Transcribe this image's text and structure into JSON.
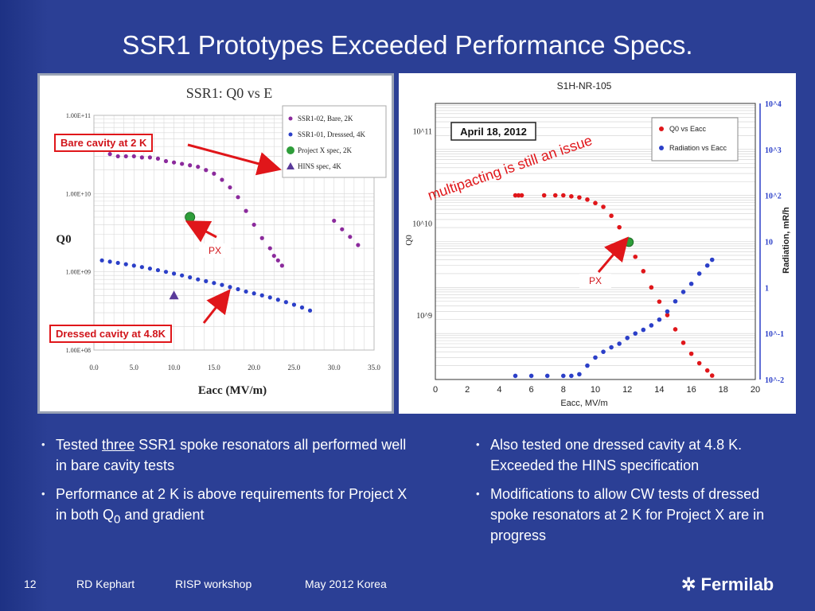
{
  "slide": {
    "title": "SSR1 Prototypes Exceeded Performance Specs.",
    "page_number": "12",
    "author": "RD Kephart",
    "event": "RISP workshop",
    "date_place": "May 2012 Korea",
    "logo_text": "Fermilab"
  },
  "callouts": {
    "bare": "Bare cavity at 2 K",
    "dressed": "Dressed cavity at 4.8K",
    "px_left": "PX",
    "px_right": "PX",
    "multipacting": "multipacting is still an issue"
  },
  "bullets_left": [
    {
      "pre": "Tested ",
      "underline": "three",
      "post": " SSR1 spoke resonators all performed well in bare cavity tests"
    },
    {
      "text": "Performance at 2 K is above requirements for Project X in both Q",
      "sub": "0",
      "post": " and gradient"
    }
  ],
  "bullets_right": [
    "Also tested one dressed cavity at 4.8 K.  Exceeded the HINS specification",
    "Modifications to allow CW tests of dressed spoke resonators at 2 K for Project X are in progress"
  ],
  "colors": {
    "background": "#2b3f95",
    "red": "#e0161a",
    "purple": "#8b2a9c",
    "blue": "#2b3fc8",
    "green": "#2e9d3a"
  },
  "chart_data": [
    {
      "type": "scatter",
      "title": "SSR1: Q0 vs E",
      "xlabel": "Eacc (MV/m)",
      "ylabel": "Q0",
      "xlim": [
        0,
        35
      ],
      "ylim_log": [
        100000000.0,
        100000000000.0
      ],
      "y_scale": "log",
      "xticks": [
        "0.0",
        "5.0",
        "10.0",
        "15.0",
        "20.0",
        "25.0",
        "30.0",
        "35.0"
      ],
      "yticks": [
        "1.00E+08",
        "1.00E+09",
        "1.00E+10",
        "1.00E+11"
      ],
      "legend_position": "top-right",
      "series": [
        {
          "name": "SSR1-02, Bare, 2K",
          "color": "#8b2a9c",
          "marker": "dot",
          "x": [
            2,
            3,
            4,
            5,
            6,
            7,
            8,
            9,
            10,
            11,
            12,
            13,
            14,
            15,
            16,
            17,
            18,
            19,
            20,
            21,
            22,
            22.5,
            23,
            23.5,
            30,
            31,
            32,
            33
          ],
          "y": [
            32000000000.0,
            30000000000.0,
            30000000000.0,
            30000000000.0,
            29000000000.0,
            29000000000.0,
            28000000000.0,
            26000000000.0,
            25000000000.0,
            24000000000.0,
            23000000000.0,
            22000000000.0,
            20000000000.0,
            18000000000.0,
            15000000000.0,
            12000000000.0,
            9000000000.0,
            6000000000.0,
            4000000000.0,
            2700000000.0,
            2000000000.0,
            1600000000.0,
            1400000000.0,
            1200000000.0,
            4500000000.0,
            3500000000.0,
            2800000000.0,
            2200000000.0
          ]
        },
        {
          "name": "SSR1-01, Dresssed, 4K",
          "color": "#2b3fc8",
          "marker": "dot",
          "x": [
            1,
            2,
            3,
            4,
            5,
            6,
            7,
            8,
            9,
            10,
            11,
            12,
            13,
            14,
            15,
            16,
            17,
            18,
            19,
            20,
            21,
            22,
            23,
            24,
            25,
            26,
            27
          ],
          "y": [
            1400000000.0,
            1350000000.0,
            1300000000.0,
            1250000000.0,
            1200000000.0,
            1150000000.0,
            1100000000.0,
            1050000000.0,
            1000000000.0,
            950000000.0,
            900000000.0,
            850000000.0,
            800000000.0,
            760000000.0,
            720000000.0,
            680000000.0,
            640000000.0,
            600000000.0,
            560000000.0,
            530000000.0,
            500000000.0,
            470000000.0,
            440000000.0,
            410000000.0,
            380000000.0,
            350000000.0,
            320000000.0
          ]
        },
        {
          "name": "Project X spec, 2K",
          "color": "#2e9d3a",
          "marker": "circle",
          "x": [
            12
          ],
          "y": [
            5000000000.0
          ]
        },
        {
          "name": "HINS spec, 4K",
          "color": "#5a3a9a",
          "marker": "triangle",
          "x": [
            10
          ],
          "y": [
            500000000.0
          ]
        }
      ]
    },
    {
      "type": "scatter",
      "title": "S1H-NR-105",
      "annotation": "April 18, 2012",
      "xlabel": "Eacc, MV/m",
      "ylabel": "Q0",
      "y2label": "Radiation, mR/h",
      "xlim": [
        0,
        20
      ],
      "xticks": [
        "0",
        "2",
        "4",
        "6",
        "8",
        "10",
        "12",
        "14",
        "16",
        "18",
        "20"
      ],
      "yticks": [
        "10^9",
        "10^10",
        "10^11"
      ],
      "y2ticks": [
        "10^-2",
        "10^-1",
        "1",
        "10",
        "10^2",
        "10^3",
        "10^4"
      ],
      "legend_position": "top-right",
      "series": [
        {
          "name": "Q0 vs Eacc",
          "color": "#e0161a",
          "marker": "dot",
          "x": [
            5,
            5.2,
            5.4,
            6.8,
            7.5,
            8,
            8.5,
            9,
            9.5,
            10,
            10.5,
            11,
            11.5,
            12,
            12.5,
            13,
            13.5,
            14,
            14.5,
            15,
            15.5,
            16,
            16.5,
            17,
            17.3
          ],
          "y": [
            20000000000.0,
            20000000000.0,
            20000000000.0,
            20000000000.0,
            20000000000.0,
            20000000000.0,
            19500000000.0,
            19000000000.0,
            18000000000.0,
            16500000000.0,
            15000000000.0,
            12000000000.0,
            9000000000.0,
            6200000000.0,
            4300000000.0,
            3000000000.0,
            2000000000.0,
            1400000000.0,
            1000000000.0,
            700000000.0,
            500000000.0,
            380000000.0,
            300000000.0,
            250000000.0,
            220000000.0
          ]
        },
        {
          "name": "Radiation vs Eacc",
          "color": "#2b3fc8",
          "marker": "dot",
          "x": [
            5,
            6,
            7,
            8,
            8.5,
            9,
            9.5,
            10,
            10.5,
            11,
            11.5,
            12,
            12.5,
            13,
            13.5,
            14,
            14.5,
            15,
            15.5,
            16,
            16.5,
            17,
            17.3
          ],
          "y": [
            0.012,
            0.012,
            0.012,
            0.012,
            0.012,
            0.013,
            0.02,
            0.03,
            0.04,
            0.05,
            0.06,
            0.08,
            0.1,
            0.12,
            0.15,
            0.2,
            0.3,
            0.5,
            0.8,
            1.2,
            2,
            3,
            4
          ]
        }
      ]
    }
  ]
}
